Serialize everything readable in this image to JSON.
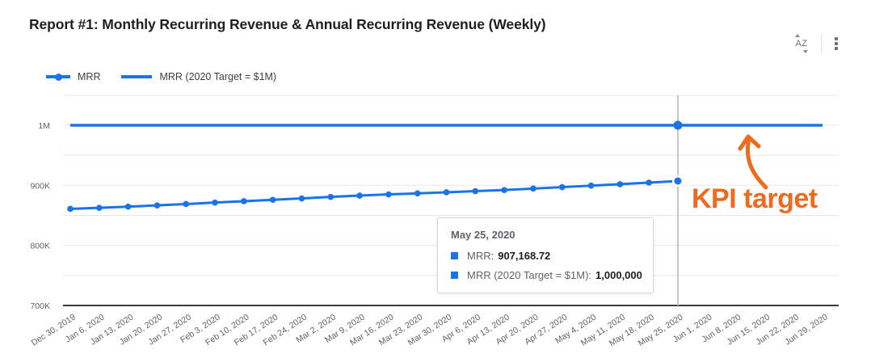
{
  "header": {
    "title": "Report #1: Monthly Recurring Revenue & Annual Recurring Revenue (Weekly)",
    "toolbar": {
      "sort_label": "AZ"
    }
  },
  "legend": {
    "items": [
      {
        "label": "MRR",
        "marker": "line-dot"
      },
      {
        "label": "MRR (2020 Target = $1M)",
        "marker": "line"
      }
    ]
  },
  "tooltip": {
    "date": "May 25, 2020",
    "rows": [
      {
        "label": "MRR:",
        "value": "907,168.72"
      },
      {
        "label": "MRR (2020 Target = $1M):",
        "value": "1,000,000"
      }
    ]
  },
  "annotation": {
    "text": "KPI target",
    "color": "#ED6B1F"
  },
  "colors": {
    "series_blue": "#1a73e8",
    "gridline": "#e8e8e8",
    "axis": "#3c3c3c",
    "crosshair": "#c4c4c4",
    "tick_text": "#616161",
    "annotation_orange": "#ED6B1F"
  },
  "chart_data": {
    "type": "line",
    "title": "Report #1: Monthly Recurring Revenue & Annual Recurring Revenue (Weekly)",
    "xlabel": "",
    "ylabel": "",
    "x_labels": [
      "Dec 30, 2019",
      "Jan 6, 2020",
      "Jan 13, 2020",
      "Jan 20, 2020",
      "Jan 27, 2020",
      "Feb 3, 2020",
      "Feb 10, 2020",
      "Feb 17, 2020",
      "Feb 24, 2020",
      "Mar 2, 2020",
      "Mar 9, 2020",
      "Mar 16, 2020",
      "Mar 23, 2020",
      "Mar 30, 2020",
      "Apr 6, 2020",
      "Apr 13, 2020",
      "Apr 20, 2020",
      "Apr 27, 2020",
      "May 4, 2020",
      "May 11, 2020",
      "May 18, 2020",
      "May 25, 2020",
      "Jun 1, 2020",
      "Jun 8, 2020",
      "Jun 15, 2020",
      "Jun 22, 2020",
      "Jun 29, 2020"
    ],
    "series": [
      {
        "name": "MRR",
        "color": "#1a73e8",
        "markers": true,
        "values": [
          860800,
          862600,
          864500,
          866600,
          868900,
          871300,
          873600,
          875900,
          878200,
          880700,
          882900,
          884900,
          886600,
          888400,
          890300,
          892200,
          894600,
          897000,
          899500,
          901900,
          904500,
          907168.72
        ]
      },
      {
        "name": "MRR (2020 Target = $1M)",
        "color": "#1a73e8",
        "markers": false,
        "values": [
          1000000,
          1000000,
          1000000,
          1000000,
          1000000,
          1000000,
          1000000,
          1000000,
          1000000,
          1000000,
          1000000,
          1000000,
          1000000,
          1000000,
          1000000,
          1000000,
          1000000,
          1000000,
          1000000,
          1000000,
          1000000,
          1000000,
          1000000,
          1000000,
          1000000,
          1000000,
          1000000
        ]
      }
    ],
    "y_ticks": [
      {
        "value": 1000000,
        "label": "1M"
      },
      {
        "value": 900000,
        "label": "900K"
      },
      {
        "value": 800000,
        "label": "800K"
      },
      {
        "value": 700000,
        "label": "700K"
      }
    ],
    "y_gridlines": [
      1000000,
      950000,
      900000,
      850000,
      800000,
      750000
    ],
    "ylim": [
      700000,
      1050000
    ],
    "grid": true,
    "legend_position": "top-left",
    "highlight_index": 21,
    "highlight_date": "May 25, 2020"
  }
}
